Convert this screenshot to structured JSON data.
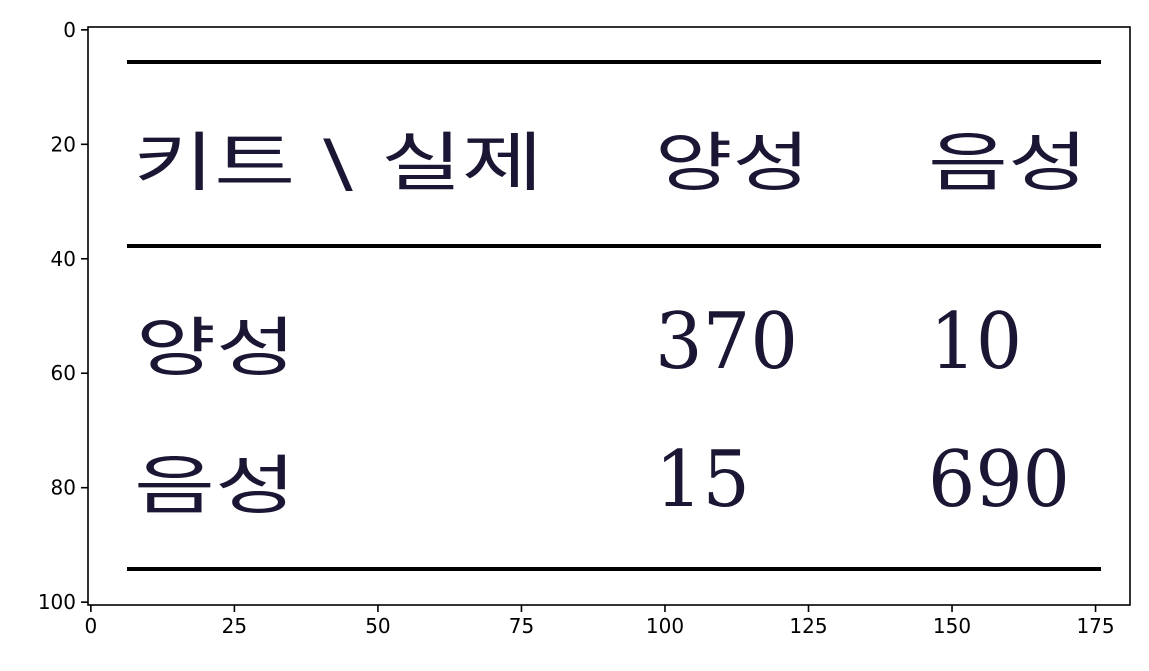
{
  "chart_data": {
    "type": "table",
    "title": "",
    "xlabel": "",
    "ylabel": "",
    "xlim": [
      -0.5,
      181
    ],
    "ylim": [
      100.5,
      -0.5
    ],
    "y_inverted": true,
    "grid": false,
    "x_ticks": [
      0,
      25,
      50,
      75,
      100,
      125,
      150,
      175
    ],
    "x_tick_labels": [
      "0",
      "25",
      "50",
      "75",
      "100",
      "125",
      "150",
      "175"
    ],
    "y_ticks": [
      0,
      20,
      40,
      60,
      80,
      100
    ],
    "y_tick_labels": [
      "0",
      "20",
      "40",
      "60",
      "80",
      "100"
    ],
    "table": {
      "header": [
        "키트 \\ 실제",
        "양성",
        "음성"
      ],
      "rows": [
        [
          "양성",
          "370",
          "10"
        ],
        [
          "음성",
          "15",
          "690"
        ]
      ]
    }
  }
}
